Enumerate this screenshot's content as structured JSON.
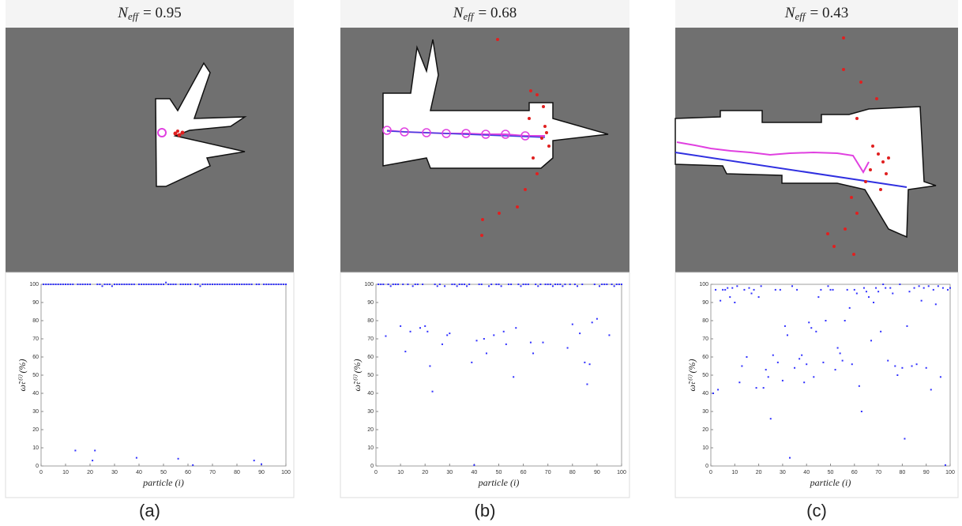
{
  "chart_data": [
    {
      "type": "scatter",
      "title": {
        "symbol": "N",
        "subscript": "eff",
        "text": "= 0.95"
      },
      "ylabel": "ω̃ₜ⁽ⁱ⁾ (%)",
      "xlabel": "particle (i)",
      "caption": "(a)",
      "color": "#3030ff",
      "xlim": [
        0,
        100
      ],
      "ylim": [
        0,
        100
      ],
      "xticks": [
        0,
        10,
        20,
        30,
        40,
        50,
        60,
        70,
        80,
        90,
        100
      ],
      "yticks": [
        0,
        10,
        20,
        30,
        40,
        50,
        60,
        70,
        80,
        90,
        100
      ],
      "x": [
        1,
        2,
        3,
        4,
        5,
        6,
        7,
        8,
        9,
        10,
        11,
        12,
        13,
        14,
        15,
        16,
        17,
        18,
        19,
        20,
        21,
        22,
        23,
        24,
        25,
        26,
        27,
        28,
        29,
        30,
        31,
        32,
        33,
        34,
        35,
        36,
        37,
        38,
        39,
        40,
        41,
        42,
        43,
        44,
        45,
        46,
        47,
        48,
        49,
        50,
        51,
        52,
        53,
        54,
        55,
        56,
        57,
        58,
        59,
        60,
        61,
        62,
        63,
        64,
        65,
        66,
        67,
        68,
        69,
        70,
        71,
        72,
        73,
        74,
        75,
        76,
        77,
        78,
        79,
        80,
        81,
        82,
        83,
        84,
        85,
        86,
        87,
        88,
        89,
        90,
        91,
        92,
        93,
        94,
        95,
        96,
        97,
        98,
        99,
        100
      ],
      "values": [
        100,
        100,
        100,
        100,
        100,
        100,
        100,
        100,
        100,
        100,
        100,
        100,
        100,
        8.5,
        100,
        100,
        100,
        100,
        100,
        100,
        3,
        8.5,
        100,
        100,
        99,
        100,
        100,
        100,
        99,
        100,
        100,
        100,
        100,
        100,
        100,
        100,
        100,
        100,
        4.5,
        100,
        100,
        100,
        100,
        100,
        100,
        100,
        100,
        100,
        100,
        100,
        101,
        100,
        100,
        100,
        100,
        4,
        100,
        100,
        100,
        100,
        100,
        0.5,
        100,
        100,
        99,
        100,
        100,
        100,
        100,
        100,
        100,
        100,
        100,
        100,
        100,
        100,
        100,
        100,
        100,
        100,
        100,
        100,
        100,
        100,
        100,
        100,
        3,
        100,
        100,
        1,
        100,
        100,
        100,
        100,
        100,
        100,
        100,
        100,
        100,
        100
      ]
    },
    {
      "type": "scatter",
      "title": {
        "symbol": "N",
        "subscript": "eff",
        "text": "= 0.68"
      },
      "ylabel": "ω̃ₜ⁽ⁱ⁾ (%)",
      "xlabel": "particle (i)",
      "caption": "(b)",
      "color": "#3030ff",
      "xlim": [
        0,
        100
      ],
      "ylim": [
        0,
        100
      ],
      "xticks": [
        0,
        10,
        20,
        30,
        40,
        50,
        60,
        70,
        80,
        90,
        100
      ],
      "yticks": [
        0,
        10,
        20,
        30,
        40,
        50,
        60,
        70,
        80,
        90,
        100
      ],
      "x": [
        1,
        2,
        3,
        4,
        5,
        6,
        7,
        8,
        9,
        10,
        11,
        12,
        13,
        14,
        15,
        16,
        17,
        18,
        19,
        20,
        21,
        22,
        23,
        24,
        25,
        26,
        27,
        28,
        29,
        30,
        31,
        32,
        33,
        34,
        35,
        36,
        37,
        38,
        39,
        40,
        41,
        42,
        43,
        44,
        45,
        46,
        47,
        48,
        49,
        50,
        51,
        52,
        53,
        54,
        55,
        56,
        57,
        58,
        59,
        60,
        61,
        62,
        63,
        64,
        65,
        66,
        67,
        68,
        69,
        70,
        71,
        72,
        73,
        74,
        75,
        76,
        77,
        78,
        79,
        80,
        81,
        82,
        83,
        84,
        85,
        86,
        87,
        88,
        89,
        90,
        91,
        92,
        93,
        94,
        95,
        96,
        97,
        98,
        99,
        100
      ],
      "values": [
        100,
        100,
        100,
        71.5,
        100,
        99,
        100,
        100,
        100,
        77,
        100,
        63,
        100,
        74,
        99,
        100,
        100,
        76,
        100,
        77,
        74,
        55,
        41,
        100,
        99,
        100,
        67,
        99,
        72,
        73,
        100,
        100,
        99,
        100,
        100,
        100,
        99,
        100,
        57,
        0.5,
        69,
        100,
        100,
        70,
        62,
        99,
        100,
        72,
        100,
        100,
        99,
        74,
        67,
        100,
        100,
        49,
        76,
        100,
        99,
        100,
        100,
        100,
        68,
        62,
        100,
        99,
        100,
        68,
        100,
        100,
        100,
        99,
        100,
        100,
        100,
        99,
        100,
        65,
        100,
        78,
        100,
        99,
        73,
        100,
        57,
        45,
        56,
        79,
        100,
        81,
        99,
        100,
        100,
        100,
        72,
        100,
        99,
        100,
        100,
        100
      ]
    },
    {
      "type": "scatter",
      "title": {
        "symbol": "N",
        "subscript": "eff",
        "text": "= 0.43"
      },
      "ylabel": "ω̃ₜ⁽ⁱ⁾ (%)",
      "xlabel": "particle (i)",
      "caption": "(c)",
      "color": "#3030ff",
      "xlim": [
        0,
        100
      ],
      "ylim": [
        0,
        100
      ],
      "xticks": [
        0,
        10,
        20,
        30,
        40,
        50,
        60,
        70,
        80,
        90,
        100
      ],
      "yticks": [
        0,
        10,
        20,
        30,
        40,
        50,
        60,
        70,
        80,
        90,
        100
      ],
      "x": [
        1,
        2,
        3,
        4,
        5,
        6,
        7,
        8,
        9,
        10,
        11,
        12,
        13,
        14,
        15,
        16,
        17,
        18,
        19,
        20,
        21,
        22,
        23,
        24,
        25,
        26,
        27,
        28,
        29,
        30,
        31,
        32,
        33,
        34,
        35,
        36,
        37,
        38,
        39,
        40,
        41,
        42,
        43,
        44,
        45,
        46,
        47,
        48,
        49,
        50,
        51,
        52,
        53,
        54,
        55,
        56,
        57,
        58,
        59,
        60,
        61,
        62,
        63,
        64,
        65,
        66,
        67,
        68,
        69,
        70,
        71,
        72,
        73,
        74,
        75,
        76,
        77,
        78,
        79,
        80,
        81,
        82,
        83,
        84,
        85,
        86,
        87,
        88,
        89,
        90,
        91,
        92,
        93,
        94,
        95,
        96,
        97,
        98,
        99,
        100
      ],
      "values": [
        40,
        97,
        42,
        91,
        97,
        97,
        98,
        93,
        98,
        90,
        99,
        46,
        55,
        97,
        60,
        98,
        95,
        97,
        43,
        93,
        99,
        43,
        53,
        49,
        26,
        61,
        97,
        57,
        97,
        47,
        77,
        72,
        4.5,
        99,
        54,
        97,
        59,
        61,
        46,
        56,
        79,
        76,
        49,
        74,
        93,
        97,
        57,
        80,
        99,
        97,
        97,
        53,
        65,
        62,
        58,
        80,
        97,
        87,
        56,
        97,
        95,
        44,
        30,
        98,
        96,
        93,
        69,
        90,
        98,
        96,
        74,
        100,
        98,
        58,
        98,
        95,
        55,
        50,
        100,
        54,
        15,
        77,
        96,
        55,
        98,
        56,
        99,
        91,
        98,
        54,
        99,
        42,
        97,
        89,
        99,
        49,
        98,
        0.5,
        97,
        98
      ]
    }
  ]
}
